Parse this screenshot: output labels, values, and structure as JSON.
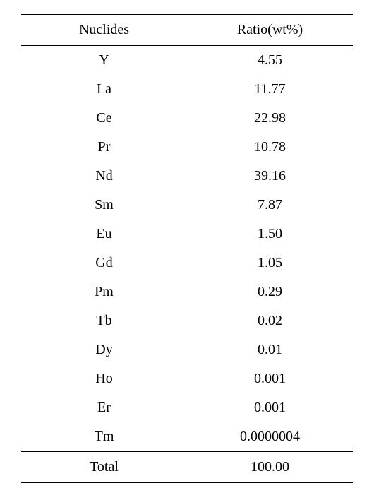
{
  "table": {
    "columns": [
      "Nuclides",
      "Ratio(wt%)"
    ],
    "rows": [
      [
        "Y",
        "4.55"
      ],
      [
        "La",
        "11.77"
      ],
      [
        "Ce",
        "22.98"
      ],
      [
        "Pr",
        "10.78"
      ],
      [
        "Nd",
        "39.16"
      ],
      [
        "Sm",
        "7.87"
      ],
      [
        "Eu",
        "1.50"
      ],
      [
        "Gd",
        "1.05"
      ],
      [
        "Pm",
        "0.29"
      ],
      [
        "Tb",
        "0.02"
      ],
      [
        "Dy",
        "0.01"
      ],
      [
        "Ho",
        "0.001"
      ],
      [
        "Er",
        "0.001"
      ],
      [
        "Tm",
        "0.0000004"
      ]
    ],
    "footer": [
      "Total",
      "100.00"
    ],
    "styling": {
      "border_color": "#000000",
      "background_color": "#ffffff",
      "text_color": "#000000",
      "font_size": 20,
      "font_family": "Times New Roman, Batang, serif",
      "header_top_border_width": 1.5,
      "header_bottom_border_width": 1,
      "footer_top_border_width": 1,
      "footer_bottom_border_width": 1.5,
      "row_padding": 9,
      "header_padding": 10,
      "column_widths": [
        "50%",
        "50%"
      ],
      "text_align": "center"
    }
  }
}
